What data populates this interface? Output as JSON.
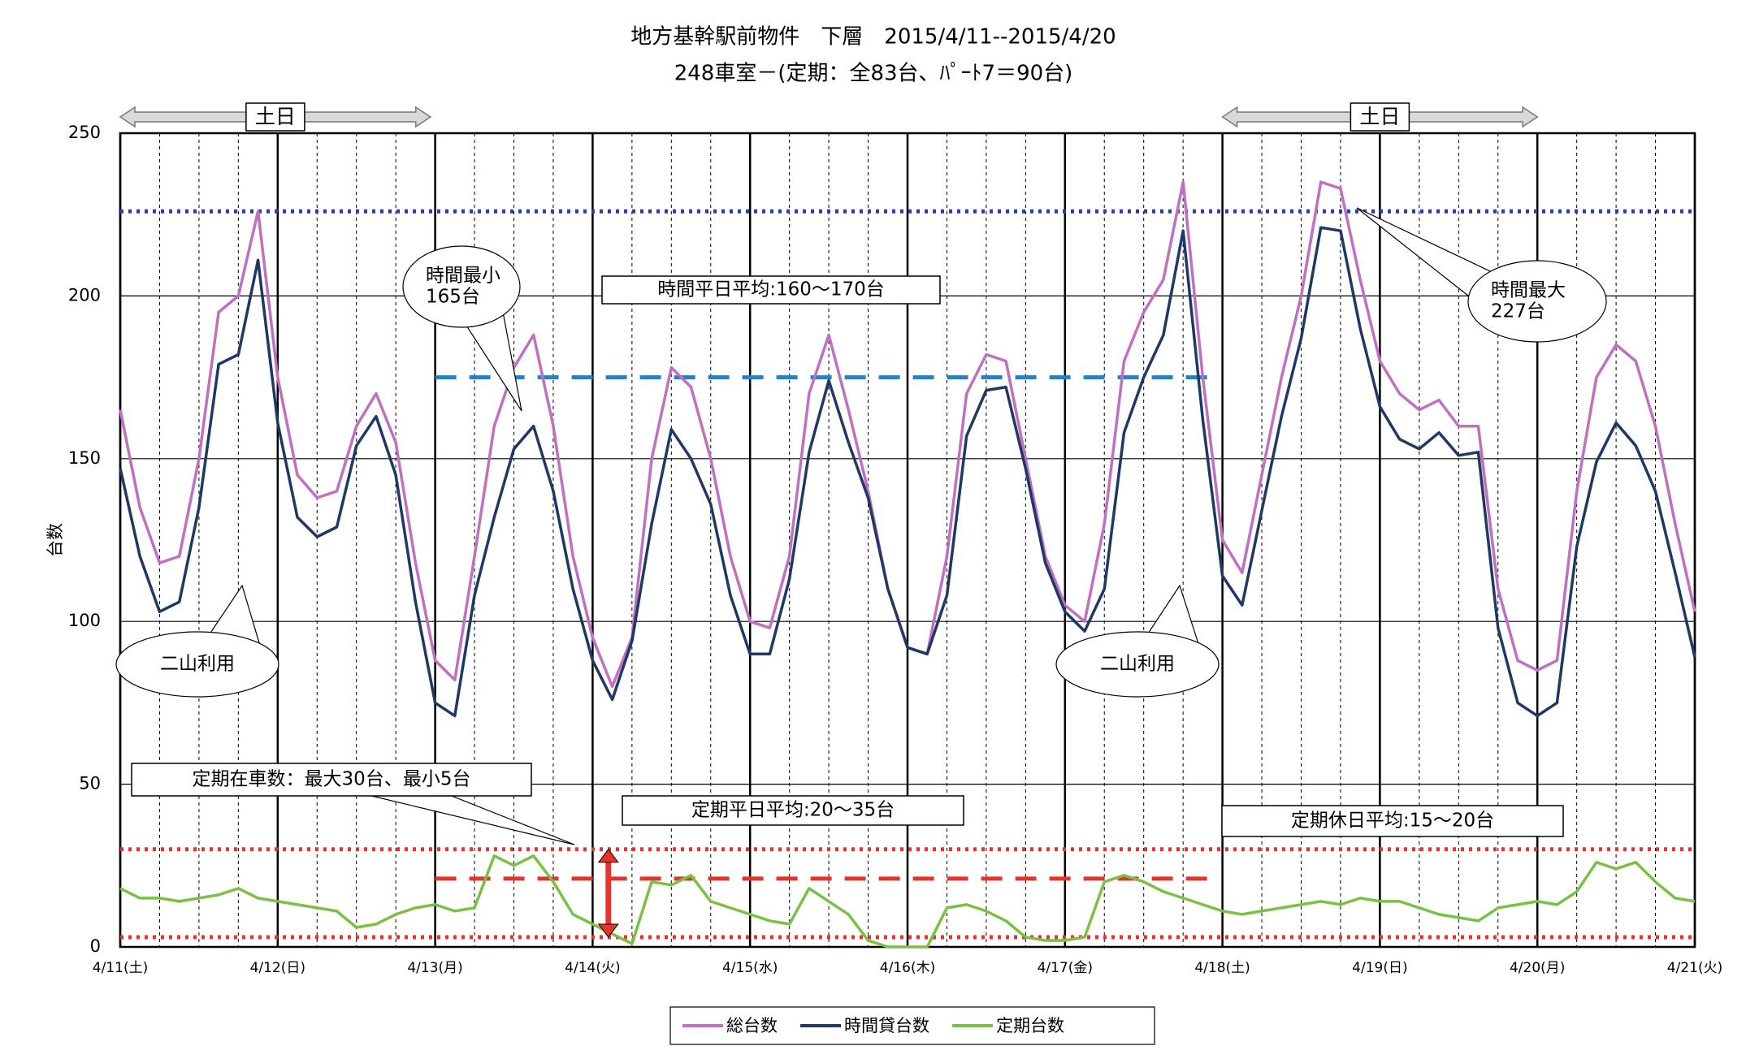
{
  "chart_data": {
    "type": "line",
    "title": [
      "地方基幹駅前物件　下層　2015/4/11--2015/4/20",
      "248車室－(定期：全83台、ﾊﾟｰﾄ7＝90台)"
    ],
    "y_label": "台数",
    "x": [
      0,
      0.125,
      0.25,
      0.375,
      0.5,
      0.625,
      0.75,
      0.875,
      1,
      1.125,
      1.25,
      1.375,
      1.5,
      1.625,
      1.75,
      1.875,
      2,
      2.125,
      2.25,
      2.375,
      2.5,
      2.625,
      2.75,
      2.875,
      3,
      3.125,
      3.25,
      3.375,
      3.5,
      3.625,
      3.75,
      3.875,
      4,
      4.125,
      4.25,
      4.375,
      4.5,
      4.625,
      4.75,
      4.875,
      5,
      5.125,
      5.25,
      5.375,
      5.5,
      5.625,
      5.75,
      5.875,
      6,
      6.125,
      6.25,
      6.375,
      6.5,
      6.625,
      6.75,
      6.875,
      7,
      7.125,
      7.25,
      7.375,
      7.5,
      7.625,
      7.75,
      7.875,
      8,
      8.125,
      8.25,
      8.375,
      8.5,
      8.625,
      8.75,
      8.875,
      9,
      9.125,
      9.25,
      9.375,
      9.5,
      9.625,
      9.75,
      9.875,
      10
    ],
    "series": [
      {
        "name": "総台数",
        "color": "#c070c0",
        "values": [
          165,
          135,
          118,
          120,
          150,
          195,
          200,
          226,
          175,
          145,
          138,
          140,
          160,
          170,
          155,
          118,
          88,
          82,
          120,
          160,
          178,
          188,
          160,
          120,
          95,
          80,
          95,
          150,
          178,
          172,
          150,
          120,
          100,
          98,
          120,
          170,
          188,
          165,
          140,
          110,
          92,
          90,
          120,
          170,
          182,
          180,
          150,
          120,
          105,
          100,
          130,
          180,
          195,
          205,
          235,
          175,
          125,
          115,
          145,
          175,
          200,
          235,
          233,
          205,
          180,
          170,
          165,
          168,
          160,
          160,
          110,
          88,
          85,
          88,
          140,
          175,
          185,
          180,
          160,
          130,
          103
        ]
      },
      {
        "name": "時間貸台数",
        "color": "#1f3864",
        "values": [
          147,
          120,
          103,
          106,
          135,
          179,
          182,
          211,
          161,
          132,
          126,
          129,
          154,
          163,
          145,
          106,
          75,
          71,
          108,
          132,
          153,
          160,
          140,
          110,
          88,
          76,
          94,
          130,
          159,
          150,
          136,
          108,
          90,
          90,
          113,
          152,
          174,
          155,
          138,
          110,
          92,
          90,
          108,
          157,
          171,
          172,
          147,
          118,
          103,
          97,
          110,
          158,
          175,
          188,
          220,
          162,
          114,
          105,
          134,
          163,
          187,
          221,
          220,
          190,
          166,
          156,
          153,
          158,
          151,
          152,
          98,
          75,
          71,
          75,
          123,
          149,
          161,
          154,
          140,
          115,
          89
        ]
      },
      {
        "name": "定期台数",
        "color": "#7ac143",
        "values": [
          18,
          15,
          15,
          14,
          15,
          16,
          18,
          15,
          14,
          13,
          12,
          11,
          6,
          7,
          10,
          12,
          13,
          11,
          12,
          28,
          25,
          28,
          20,
          10,
          7,
          4,
          1,
          20,
          19,
          22,
          14,
          12,
          10,
          8,
          7,
          18,
          14,
          10,
          2,
          0,
          0,
          0,
          12,
          13,
          11,
          8,
          3,
          2,
          2,
          3,
          20,
          22,
          20,
          17,
          15,
          13,
          11,
          10,
          11,
          12,
          13,
          14,
          13,
          15,
          14,
          14,
          12,
          10,
          9,
          8,
          12,
          13,
          14,
          13,
          17,
          26,
          24,
          26,
          20,
          15,
          14
        ]
      }
    ],
    "xlim": [
      0,
      10
    ],
    "xticks": [
      {
        "value": 0,
        "label": "4/11(土)"
      },
      {
        "value": 1,
        "label": "4/12(日)"
      },
      {
        "value": 2,
        "label": "4/13(月)"
      },
      {
        "value": 3,
        "label": "4/14(火)"
      },
      {
        "value": 4,
        "label": "4/15(水)"
      },
      {
        "value": 5,
        "label": "4/16(木)"
      },
      {
        "value": 6,
        "label": "4/17(金)"
      },
      {
        "value": 7,
        "label": "4/18(土)"
      },
      {
        "value": 8,
        "label": "4/19(日)"
      },
      {
        "value": 9,
        "label": "4/20(月)"
      },
      {
        "value": 10,
        "label": "4/21(火)"
      }
    ],
    "ylim": [
      0,
      250
    ],
    "yticks": [
      0,
      50,
      100,
      150,
      200,
      250
    ],
    "grid": true,
    "legend": "bottom",
    "reference_lines": [
      {
        "value": 226,
        "color": "#2e3fa3",
        "style": "dotted"
      },
      {
        "value": 175,
        "x": [
          2,
          6.92
        ],
        "color": "#2a7fc0",
        "style": "dashed"
      },
      {
        "value": 30,
        "color": "#e8322b",
        "style": "dotted"
      },
      {
        "value": 3,
        "color": "#e8322b",
        "style": "dotted"
      },
      {
        "value": 21,
        "x": [
          2,
          6.92
        ],
        "color": "#e8322b",
        "style": "dashed"
      }
    ],
    "range_arrow": {
      "x": 3.1,
      "from": 3,
      "to": 30,
      "color": "#e8322b"
    },
    "weekend_markers": [
      {
        "label": "土日",
        "x": [
          0,
          1.97
        ]
      },
      {
        "label": "土日",
        "x": [
          7,
          9
        ]
      }
    ],
    "annotations": [
      {
        "lines": [
          "時間最小",
          "165台"
        ]
      },
      {
        "lines": [
          "時間平日平均:160～170台"
        ]
      },
      {
        "lines": [
          "時間最大",
          "227台"
        ]
      },
      {
        "lines": [
          "二山利用"
        ]
      },
      {
        "lines": [
          "二山利用"
        ]
      },
      {
        "lines": [
          "定期在車数：最大30台、最小5台"
        ]
      },
      {
        "lines": [
          "定期平日平均:20～35台"
        ]
      },
      {
        "lines": [
          "定期休日平均:15～20台"
        ]
      }
    ]
  }
}
